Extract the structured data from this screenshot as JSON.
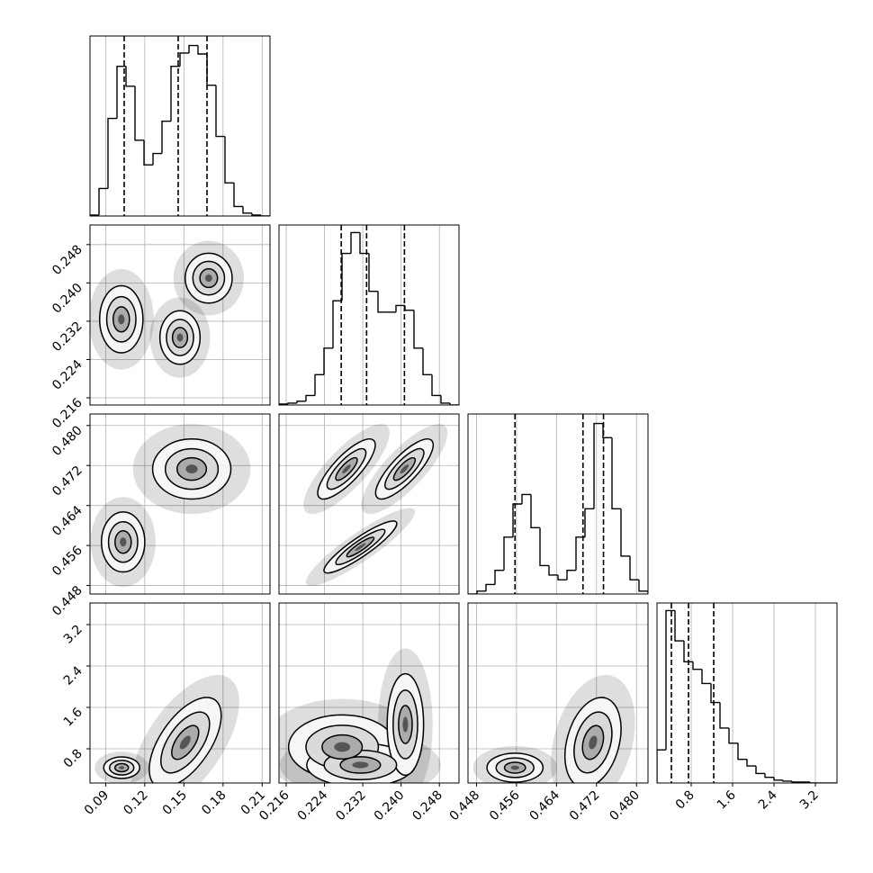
{
  "chart_data": {
    "type": "corner",
    "grid": true,
    "color": "#000000",
    "grid_color": "#b0b0b0",
    "params": [
      {
        "lim": [
          0.078,
          0.216
        ],
        "ticks": [
          0.09,
          0.12,
          0.15,
          0.18,
          0.21
        ],
        "bins": [
          0.078,
          0.0849,
          0.0918,
          0.0987,
          0.1056,
          0.1125,
          0.1194,
          0.1263,
          0.1332,
          0.1401,
          0.147,
          0.1539,
          0.1608,
          0.1677,
          0.1746,
          0.1815,
          0.1884,
          0.1953,
          0.2022,
          0.2091,
          0.216
        ],
        "counts": [
          1,
          29,
          103,
          158,
          137,
          80,
          54,
          66,
          100,
          158,
          172,
          180,
          171,
          138,
          84,
          35,
          10,
          3,
          1,
          0
        ],
        "count_lim": [
          0,
          190
        ],
        "quantiles": [
          0.1042,
          0.1456,
          0.1677
        ]
      },
      {
        "lim": [
          0.2145,
          0.2521
        ],
        "ticks": [
          0.216,
          0.224,
          0.232,
          {
            "value": 0.24,
            "label": "0.240"
          },
          0.248
        ],
        "bins": [
          0.2145,
          0.21638,
          0.21826,
          0.22014,
          0.22202,
          0.2239,
          0.22578,
          0.22766,
          0.22954,
          0.23142,
          0.2333,
          0.23518,
          0.23706,
          0.23894,
          0.24082,
          0.2427,
          0.24458,
          0.24646,
          0.24834,
          0.25022,
          0.2521
        ],
        "counts": [
          1,
          2,
          4,
          10,
          32,
          60,
          110,
          160,
          182,
          160,
          120,
          98,
          98,
          105,
          100,
          60,
          32,
          10,
          2,
          0
        ],
        "count_lim": [
          0,
          190
        ],
        "quantiles": [
          0.2275,
          0.2328,
          0.2407
        ]
      },
      {
        "lim": [
          0.4463,
          0.4823
        ],
        "ticks": [
          0.448,
          0.456,
          0.464,
          0.472,
          {
            "value": 0.48,
            "label": "0.480"
          }
        ],
        "bins": [
          0.4463,
          0.4481,
          0.4499,
          0.4517,
          0.4535,
          0.4553,
          0.4571,
          0.4589,
          0.4607,
          0.4625,
          0.4643,
          0.4661,
          0.4679,
          0.4697,
          0.4715,
          0.4733,
          0.4751,
          0.4769,
          0.4787,
          0.4805,
          0.4823
        ],
        "counts": [
          0,
          3,
          10,
          25,
          60,
          95,
          105,
          70,
          30,
          20,
          15,
          25,
          60,
          90,
          180,
          165,
          90,
          40,
          15,
          3
        ],
        "count_lim": [
          0,
          190
        ],
        "quantiles": [
          0.4557,
          0.4693,
          0.4734
        ]
      },
      {
        "lim": [
          0.139,
          3.617
        ],
        "ticks": [
          0.8,
          1.6,
          2.4,
          3.2
        ],
        "bins": [
          0.139,
          0.3129,
          0.4868,
          0.6607,
          0.8346,
          1.0085,
          1.1824,
          1.3563,
          1.5302,
          1.7041,
          1.878,
          2.0519,
          2.2258,
          2.3997,
          2.5736,
          2.7475,
          2.9214,
          3.0953,
          3.2692,
          3.4431,
          3.617
        ],
        "counts": [
          35,
          182,
          150,
          128,
          120,
          105,
          85,
          58,
          42,
          25,
          18,
          10,
          6,
          3,
          2,
          1,
          1,
          0,
          0,
          0
        ],
        "count_lim": [
          0,
          190
        ],
        "quantiles": [
          0.417,
          0.748,
          1.235
        ]
      }
    ],
    "pairs": [
      {
        "x": 0,
        "y": 1,
        "modes": [
          {
            "x": 0.102,
            "y": 0.2324,
            "sx": 0.0083,
            "sy": 0.0035,
            "rho": 0
          },
          {
            "x": 0.169,
            "y": 0.241,
            "sx": 0.009,
            "sy": 0.0026,
            "rho": 0
          },
          {
            "x": 0.147,
            "y": 0.2286,
            "sx": 0.0077,
            "sy": 0.0028,
            "rho": 0
          }
        ]
      },
      {
        "x": 0,
        "y": 2,
        "modes": [
          {
            "x": 0.1034,
            "y": 0.4567,
            "sx": 0.0083,
            "sy": 0.003,
            "rho": 0
          },
          {
            "x": 0.156,
            "y": 0.4713,
            "sx": 0.015,
            "sy": 0.003,
            "rho": 0
          }
        ]
      },
      {
        "x": 1,
        "y": 2,
        "modes": [
          {
            "x": 0.2286,
            "y": 0.4713,
            "sx": 0.003,
            "sy": 0.003,
            "rho": 0.8
          },
          {
            "x": 0.2407,
            "y": 0.4713,
            "sx": 0.003,
            "sy": 0.003,
            "rho": 0.8
          },
          {
            "x": 0.2315,
            "y": 0.4557,
            "sx": 0.0038,
            "sy": 0.0026,
            "rho": 0.9
          }
        ]
      },
      {
        "x": 0,
        "y": 3,
        "modes": [
          {
            "x": 0.1023,
            "y": 0.435,
            "sx": 0.0069,
            "sy": 0.104,
            "rho": 0
          },
          {
            "x": 0.151,
            "y": 0.922,
            "sx": 0.0138,
            "sy": 0.435,
            "rho": 0.6
          }
        ]
      },
      {
        "x": 1,
        "y": 3,
        "modes": [
          {
            "x": 0.2277,
            "y": 0.835,
            "sx": 0.0056,
            "sy": 0.31,
            "rho": 0
          },
          {
            "x": 0.2315,
            "y": 0.487,
            "sx": 0.0056,
            "sy": 0.21,
            "rho": 0
          },
          {
            "x": 0.2409,
            "y": 1.27,
            "sx": 0.0019,
            "sy": 0.49,
            "rho": 0
          }
        ]
      },
      {
        "x": 2,
        "y": 3,
        "modes": [
          {
            "x": 0.4557,
            "y": 0.435,
            "sx": 0.0028,
            "sy": 0.14,
            "rho": 0
          },
          {
            "x": 0.4713,
            "y": 0.922,
            "sx": 0.0028,
            "sy": 0.435,
            "rho": 0.3
          }
        ]
      }
    ]
  }
}
